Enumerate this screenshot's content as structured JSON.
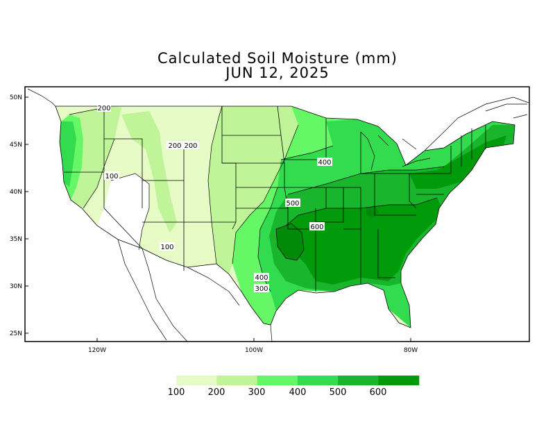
{
  "title": {
    "line1": "Calculated Soil Moisture (mm)",
    "line2": "JUN 12, 2025"
  },
  "axes": {
    "lat_ticks": [
      "50N",
      "45N",
      "40N",
      "35N",
      "30N",
      "25N"
    ],
    "lon_ticks": [
      "120W",
      "100W",
      "80W"
    ]
  },
  "contour_labels": [
    "200",
    "200",
    "200",
    "100",
    "100",
    "400",
    "500",
    "600",
    "400",
    "300"
  ],
  "legend": {
    "labels": [
      "100",
      "200",
      "300",
      "400",
      "500",
      "600"
    ],
    "colors": [
      "#e6fbc6",
      "#bff598",
      "#66f766",
      "#33dc4f",
      "#19b52d",
      "#009a0a"
    ]
  },
  "palette": {
    "no_data": "#ffffff",
    "boundaries": "#000000"
  }
}
